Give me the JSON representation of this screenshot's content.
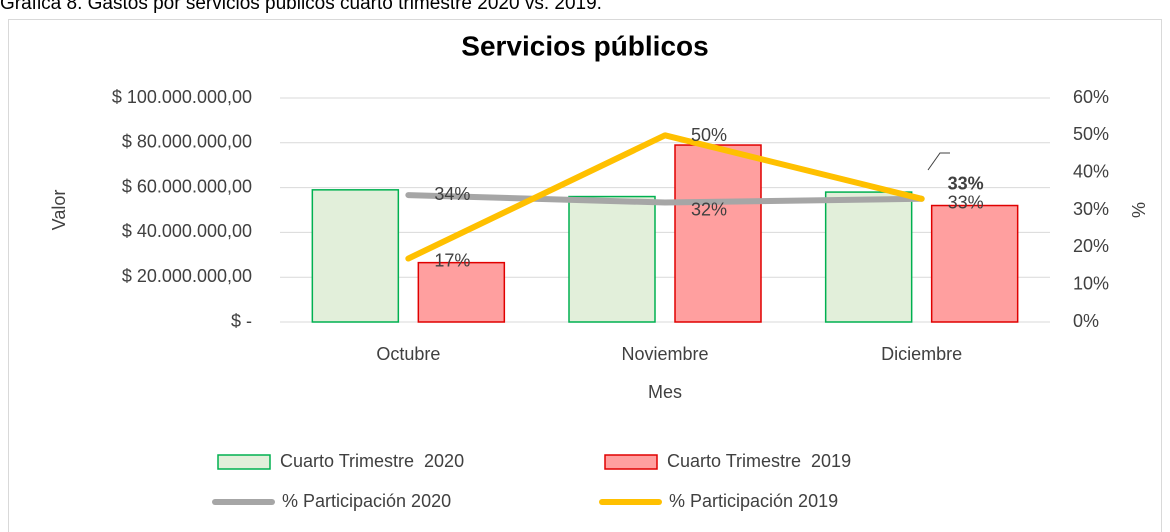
{
  "caption": "Gráfica 8. Gastos por servicios públicos cuarto trimestre 2020 vs. 2019.",
  "chart_data": {
    "type": "bar",
    "title": "Servicios públicos",
    "x_label": "Mes",
    "y_label": "Valor",
    "y2_label": "%",
    "categories": [
      "Octubre",
      "Noviembre",
      "Diciembre"
    ],
    "ylim": [
      0,
      100000000
    ],
    "yticks": [
      {
        "value": 0,
        "label": "$ -"
      },
      {
        "value": 20000000,
        "label": "$ 20.000.000,00"
      },
      {
        "value": 40000000,
        "label": "$ 40.000.000,00"
      },
      {
        "value": 60000000,
        "label": "$ 60.000.000,00"
      },
      {
        "value": 80000000,
        "label": "$ 80.000.000,00"
      },
      {
        "value": 100000000,
        "label": "$ 100.000.000,00"
      }
    ],
    "y2lim": [
      0,
      60
    ],
    "y2ticks": [
      {
        "value": 0,
        "label": "0%"
      },
      {
        "value": 10,
        "label": "10%"
      },
      {
        "value": 20,
        "label": "20%"
      },
      {
        "value": 30,
        "label": "30%"
      },
      {
        "value": 40,
        "label": "40%"
      },
      {
        "value": 50,
        "label": "50%"
      },
      {
        "value": 60,
        "label": "60%"
      }
    ],
    "grid": true,
    "series": [
      {
        "name": "Cuarto Trimestre  2020",
        "type": "bar",
        "color": "#e2efda",
        "edge_color": "#00b050",
        "values": [
          59000000,
          56000000,
          58000000
        ]
      },
      {
        "name": "Cuarto Trimestre  2019",
        "type": "bar",
        "color": "#ff9f9f",
        "edge_color": "#e00000",
        "values": [
          26500000,
          79000000,
          52000000
        ]
      },
      {
        "name": "% Participación 2020",
        "type": "line",
        "axis": "y2",
        "color": "#a6a6a6",
        "values": [
          34,
          32,
          33
        ],
        "value_labels": [
          "34%",
          "32%",
          "33%"
        ]
      },
      {
        "name": "% Participación 2019",
        "type": "line",
        "axis": "y2",
        "color": "#ffc000",
        "values": [
          17,
          50,
          33
        ],
        "value_labels": [
          "17%",
          "50%",
          "33%"
        ]
      }
    ]
  }
}
